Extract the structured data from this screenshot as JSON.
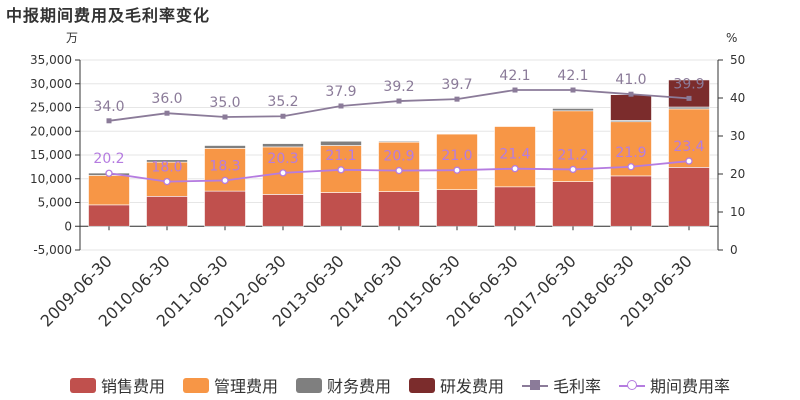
{
  "title": "中报期间费用及毛利率变化",
  "chart_data": {
    "type": "bar",
    "stacked": true,
    "title": "中报期间费用及毛利率变化",
    "left_unit": "万",
    "right_unit": "%",
    "categories": [
      "2009-06-30",
      "2010-06-30",
      "2011-06-30",
      "2012-06-30",
      "2013-06-30",
      "2014-06-30",
      "2015-06-30",
      "2016-06-30",
      "2017-06-30",
      "2018-06-30",
      "2019-06-30"
    ],
    "ylim": [
      -5000,
      35000
    ],
    "y_ticks": [
      -5000,
      0,
      5000,
      10000,
      15000,
      20000,
      25000,
      30000,
      35000
    ],
    "y_tick_labels": [
      "-5,000",
      "0",
      "5,000",
      "10,000",
      "15,000",
      "20,000",
      "25,000",
      "30,000",
      "35,000"
    ],
    "y2lim": [
      0,
      50
    ],
    "y2_ticks": [
      0,
      10,
      20,
      30,
      40,
      50
    ],
    "grid": true,
    "legend_position": "bottom",
    "series": [
      {
        "name": "销售费用",
        "color": "#c0504d",
        "axis": "left",
        "values": [
          4500,
          6300,
          7400,
          6700,
          7100,
          7300,
          7700,
          8300,
          9400,
          10600,
          12400
        ]
      },
      {
        "name": "管理费用",
        "color": "#f79646",
        "axis": "left",
        "values": [
          6200,
          7200,
          9000,
          10000,
          9900,
          10400,
          11700,
          12700,
          14900,
          11400,
          12300
        ]
      },
      {
        "name": "财务费用",
        "color": "#7f7f7f",
        "axis": "left",
        "values": [
          500,
          500,
          600,
          700,
          900,
          200,
          0,
          0,
          500,
          300,
          400
        ]
      },
      {
        "name": "研发费用",
        "color": "#7b2c2c",
        "axis": "left",
        "values": [
          0,
          0,
          0,
          0,
          0,
          0,
          0,
          0,
          0,
          5400,
          5700
        ]
      }
    ],
    "lines": [
      {
        "name": "毛利率",
        "color": "#8b7b99",
        "marker": "square",
        "axis": "right",
        "values": [
          34.0,
          36.0,
          35.0,
          35.2,
          37.9,
          39.2,
          39.7,
          42.1,
          42.1,
          41.0,
          39.9
        ],
        "labels": [
          "34.0",
          "36.0",
          "35.0",
          "35.2",
          "37.9",
          "39.2",
          "39.7",
          "42.1",
          "42.1",
          "41.0",
          "39.9"
        ]
      },
      {
        "name": "期间费用率",
        "color": "#b57ce0",
        "marker": "circle",
        "axis": "right",
        "values": [
          20.2,
          18.0,
          18.3,
          20.3,
          21.1,
          20.9,
          21.0,
          21.4,
          21.2,
          21.9,
          23.4
        ],
        "labels": [
          "20.2",
          "18.0",
          "18.3",
          "20.3",
          "21.1",
          "20.9",
          "21.0",
          "21.4",
          "21.2",
          "21.9",
          "23.4"
        ]
      }
    ]
  }
}
